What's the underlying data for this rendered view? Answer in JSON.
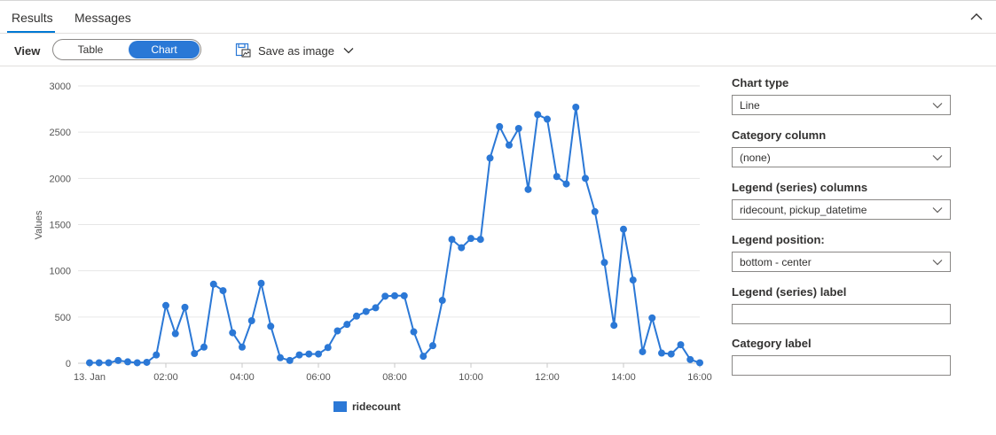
{
  "tabs": {
    "results": "Results",
    "messages": "Messages"
  },
  "toolbar": {
    "view_label": "View",
    "toggle_table": "Table",
    "toggle_chart": "Chart",
    "save_label": "Save as image"
  },
  "panel": {
    "chart_type_label": "Chart type",
    "chart_type_value": "Line",
    "category_column_label": "Category column",
    "category_column_value": "(none)",
    "legend_columns_label": "Legend (series) columns",
    "legend_columns_value": "ridecount, pickup_datetime",
    "legend_position_label": "Legend position:",
    "legend_position_value": "bottom - center",
    "legend_label_label": "Legend (series) label",
    "legend_label_value": "",
    "category_label_label": "Category label",
    "category_label_value": ""
  },
  "colors": {
    "accent": "#2a78d6",
    "series": "#2b78d6"
  },
  "chart_data": {
    "type": "line",
    "ylabel": "Values",
    "ylim": [
      0,
      3000
    ],
    "yticks": [
      0,
      500,
      1000,
      1500,
      2000,
      2500,
      3000
    ],
    "xlim": [
      -10,
      950
    ],
    "xticks": [
      {
        "label": "13. Jan",
        "x": 0
      },
      {
        "label": "02:00",
        "x": 120
      },
      {
        "label": "04:00",
        "x": 240
      },
      {
        "label": "06:00",
        "x": 360
      },
      {
        "label": "08:00",
        "x": 480
      },
      {
        "label": "10:00",
        "x": 600
      },
      {
        "label": "12:00",
        "x": 720
      },
      {
        "label": "14:00",
        "x": 840
      },
      {
        "label": "16:00",
        "x": 960
      }
    ],
    "x_unit": "minutes since 13. Jan 00:00",
    "grid": true,
    "legend_position": "bottom-center",
    "series": [
      {
        "name": "ridecount",
        "x": [
          0,
          15,
          30,
          45,
          60,
          75,
          90,
          105,
          120,
          135,
          150,
          165,
          180,
          195,
          210,
          225,
          240,
          255,
          270,
          285,
          300,
          315,
          330,
          345,
          360,
          375,
          390,
          405,
          420,
          435,
          450,
          465,
          480,
          495,
          510,
          525,
          540,
          555,
          570,
          585,
          600,
          615,
          630,
          645,
          660,
          675,
          690,
          705,
          720,
          735,
          750,
          765,
          780,
          795,
          810,
          825,
          840,
          855,
          870,
          885,
          900,
          915,
          930,
          945,
          960
        ],
        "values": [
          5,
          5,
          5,
          30,
          15,
          5,
          10,
          90,
          625,
          320,
          605,
          105,
          175,
          855,
          785,
          330,
          175,
          460,
          865,
          400,
          60,
          30,
          90,
          100,
          100,
          170,
          350,
          420,
          510,
          560,
          600,
          725,
          730,
          730,
          340,
          75,
          190,
          680,
          1340,
          1250,
          1350,
          1340,
          2220,
          2560,
          2360,
          2540,
          1880,
          2690,
          2640,
          2020,
          1940,
          2770,
          2000,
          1640,
          1090,
          410,
          1450,
          900,
          125,
          490,
          110,
          100,
          200,
          40,
          5
        ]
      }
    ]
  }
}
